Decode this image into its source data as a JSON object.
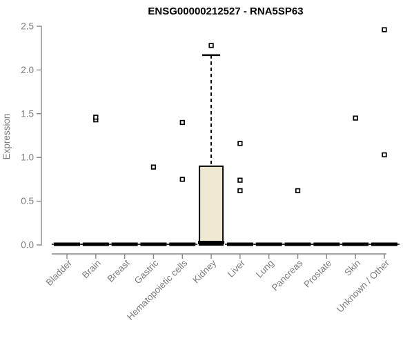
{
  "chart_data": {
    "type": "boxplot",
    "title": "ENSG00000212527 - RNA5SP63",
    "ylabel": "Expression",
    "xlabel": "",
    "ylim": [
      0.0,
      2.5
    ],
    "yticks": [
      0.0,
      0.5,
      1.0,
      1.5,
      2.0,
      2.5
    ],
    "grid": false,
    "legend": "none",
    "categories": [
      "Bladder",
      "Brain",
      "Breast",
      "Gastric",
      "Hematopoietic cells",
      "Kidney",
      "Liver",
      "Lung",
      "Pancreas",
      "Prostate",
      "Skin",
      "Unknown / Other"
    ],
    "boxes": [
      {
        "category": "Bladder",
        "whisker_low": 0,
        "q1": 0,
        "median": 0,
        "q3": 0,
        "whisker_high": 0,
        "outliers": []
      },
      {
        "category": "Brain",
        "whisker_low": 0,
        "q1": 0,
        "median": 0,
        "q3": 0,
        "whisker_high": 0,
        "outliers": [
          1.43,
          1.46
        ]
      },
      {
        "category": "Breast",
        "whisker_low": 0,
        "q1": 0,
        "median": 0,
        "q3": 0,
        "whisker_high": 0,
        "outliers": []
      },
      {
        "category": "Gastric",
        "whisker_low": 0,
        "q1": 0,
        "median": 0,
        "q3": 0,
        "whisker_high": 0,
        "outliers": [
          0.89
        ]
      },
      {
        "category": "Hematopoietic cells",
        "whisker_low": 0,
        "q1": 0,
        "median": 0,
        "q3": 0,
        "whisker_high": 0,
        "outliers": [
          0.75,
          1.4
        ]
      },
      {
        "category": "Kidney",
        "whisker_low": 0,
        "q1": 0,
        "median": 0.02,
        "q3": 0.9,
        "whisker_high": 2.17,
        "outliers": [
          2.28
        ]
      },
      {
        "category": "Liver",
        "whisker_low": 0,
        "q1": 0,
        "median": 0,
        "q3": 0,
        "whisker_high": 0,
        "outliers": [
          0.62,
          0.74,
          1.16
        ]
      },
      {
        "category": "Lung",
        "whisker_low": 0,
        "q1": 0,
        "median": 0,
        "q3": 0,
        "whisker_high": 0,
        "outliers": []
      },
      {
        "category": "Pancreas",
        "whisker_low": 0,
        "q1": 0,
        "median": 0,
        "q3": 0,
        "whisker_high": 0,
        "outliers": [
          0.62
        ]
      },
      {
        "category": "Prostate",
        "whisker_low": 0,
        "q1": 0,
        "median": 0,
        "q3": 0,
        "whisker_high": 0,
        "outliers": []
      },
      {
        "category": "Skin",
        "whisker_low": 0,
        "q1": 0,
        "median": 0,
        "q3": 0,
        "whisker_high": 0,
        "outliers": [
          1.45
        ]
      },
      {
        "category": "Unknown / Other",
        "whisker_low": 0,
        "q1": 0,
        "median": 0,
        "q3": 0,
        "whisker_high": 0,
        "outliers": [
          1.03,
          2.46
        ]
      }
    ],
    "colors": {
      "background": "#FFFFFF",
      "title": "#000000",
      "axis_line": "#888888",
      "tick_label": "#7D7D7D",
      "box_fill": "#EEE8D2",
      "box_border": "#000000",
      "median_line": "#000000",
      "whisker": "#000000",
      "outlier_fill": "#FFFFFF",
      "outlier_border": "#000000"
    }
  }
}
